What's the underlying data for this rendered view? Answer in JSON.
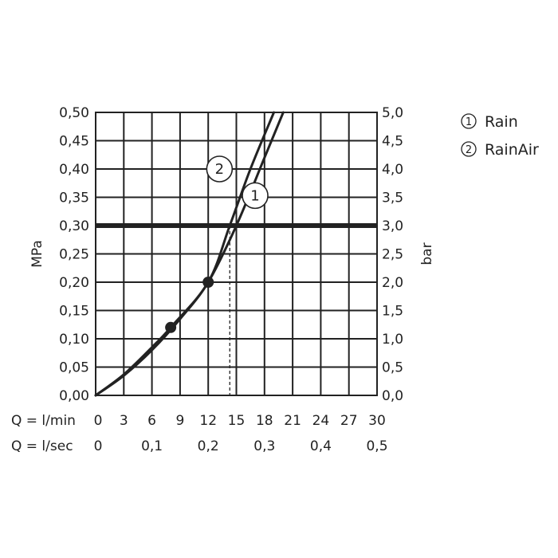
{
  "chart_data": {
    "type": "line",
    "left_axis": {
      "label": "MPa",
      "range": [
        0,
        0.5
      ],
      "ticks": [
        "0,00",
        "0,05",
        "0,10",
        "0,15",
        "0,20",
        "0,25",
        "0,30",
        "0,35",
        "0,40",
        "0,45",
        "0,50"
      ]
    },
    "right_axis": {
      "label": "bar",
      "range": [
        0,
        5
      ],
      "ticks": [
        "0,0",
        "0,5",
        "1,0",
        "1,5",
        "2,0",
        "2,5",
        "3,0",
        "3,5",
        "4,0",
        "4,5",
        "5,0"
      ]
    },
    "x_axis_lmin": {
      "label": "Q = l/min",
      "range": [
        0,
        30
      ],
      "ticks": [
        "0",
        "3",
        "6",
        "9",
        "12",
        "15",
        "18",
        "21",
        "24",
        "27",
        "30"
      ]
    },
    "x_axis_lsec": {
      "label": "Q = l/sec",
      "ticks": [
        {
          "value": 0,
          "text": "0"
        },
        {
          "value": 0.1,
          "text": "0,1"
        },
        {
          "value": 0.2,
          "text": "0,2"
        },
        {
          "value": 0.3,
          "text": "0,3"
        },
        {
          "value": 0.4,
          "text": "0,4"
        },
        {
          "value": 0.5,
          "text": "0,5"
        }
      ]
    },
    "grid": true,
    "reference_line": {
      "y": 0.3
    },
    "series": [
      {
        "name": "Rain",
        "marker": "1",
        "x": [
          0,
          3,
          6,
          9,
          12,
          15,
          18,
          20
        ],
        "y": [
          0,
          0.035,
          0.08,
          0.135,
          0.2,
          0.3,
          0.42,
          0.5
        ]
      },
      {
        "name": "RainAir",
        "marker": "2",
        "x": [
          0,
          3,
          6,
          8,
          12,
          14.3,
          16.5,
          19
        ],
        "y": [
          0,
          0.037,
          0.085,
          0.12,
          0.2,
          0.3,
          0.4,
          0.5
        ]
      }
    ],
    "points": [
      {
        "x": 8,
        "y": 0.12
      },
      {
        "x": 12,
        "y": 0.2
      }
    ],
    "dashed_drops": [
      {
        "x": 14.3,
        "y": 0.3
      },
      {
        "x": 15,
        "y": 0.3
      }
    ],
    "legend": {
      "position": "top-right",
      "items": [
        {
          "marker": "1",
          "label": "Rain"
        },
        {
          "marker": "2",
          "label": "RainAir"
        }
      ]
    }
  }
}
